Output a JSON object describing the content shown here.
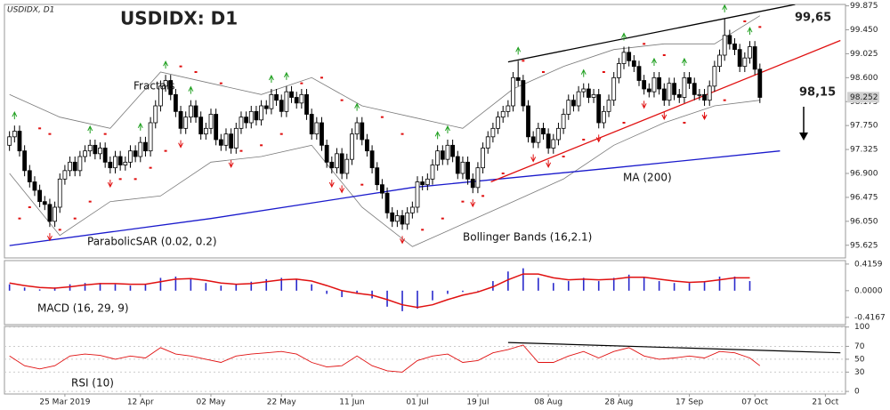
{
  "chart_data": [
    {
      "type": "candlestick",
      "title": "USDIDX: D1",
      "subtitle": "USDIDX, D1",
      "xlim": [
        -1,
        166
      ],
      "ylim": [
        95.4,
        99.9
      ],
      "yticks": [
        {
          "value": 99.875,
          "label": "99.875"
        },
        {
          "value": 99.45,
          "label": "99.450"
        },
        {
          "value": 99.025,
          "label": "99.025"
        },
        {
          "value": 98.6,
          "label": "98.600"
        },
        {
          "value": 98.175,
          "label": "98.175"
        },
        {
          "value": 97.75,
          "label": "97.750"
        },
        97.325,
        {
          "value": 96.9,
          "label": "96.900"
        },
        96.475,
        {
          "value": 96.05,
          "label": "96.050"
        },
        95.625
      ],
      "xticks": [
        {
          "value": 11,
          "label": "25 Mar 2019"
        },
        {
          "value": 26,
          "label": "12 Apr"
        },
        {
          "value": 40,
          "label": "02 May"
        },
        {
          "value": 54,
          "label": "22 May"
        },
        {
          "value": 68,
          "label": "11 Jun"
        },
        {
          "value": 81,
          "label": "01 Jul"
        },
        {
          "value": 93,
          "label": "19 Jul"
        },
        {
          "value": 107,
          "label": "08 Aug"
        },
        {
          "value": 121,
          "label": "28 Aug"
        },
        {
          "value": 135,
          "label": "17 Sep"
        },
        {
          "value": 148,
          "label": "07 Oct"
        },
        {
          "value": 162,
          "label": "21 Oct"
        }
      ],
      "up_color": "#ffffff",
      "down_color": "#000000",
      "open": [
        97.4,
        97.55,
        97.65,
        97.3,
        96.95,
        96.75,
        96.6,
        96.4,
        96.35,
        96.05,
        96.3,
        96.8,
        96.95,
        97.1,
        96.95,
        97.2,
        97.3,
        97.4,
        97.25,
        97.35,
        97.1,
        97.0,
        97.2,
        97.05,
        97.1,
        97.3,
        97.2,
        97.45,
        97.3,
        97.8,
        98.1,
        98.45,
        98.55,
        98.3,
        98.0,
        97.7,
        97.9,
        98.1,
        97.9,
        97.6,
        97.7,
        97.95,
        97.5,
        97.4,
        97.6,
        97.35,
        97.7,
        97.9,
        97.8,
        98.0,
        97.85,
        98.1,
        98.05,
        98.3,
        98.2,
        98.0,
        98.35,
        98.25,
        98.15,
        98.3,
        97.95,
        97.6,
        97.8,
        97.4,
        97.1,
        97.0,
        97.25,
        96.9,
        97.15,
        97.6,
        97.8,
        97.5,
        97.3,
        97.0,
        96.7,
        96.55,
        96.2,
        96.05,
        96.15,
        96.0,
        96.2,
        96.3,
        96.75,
        96.7,
        96.8,
        97.05,
        97.3,
        97.15,
        97.4,
        97.2,
        96.9,
        97.1,
        96.8,
        96.65,
        97.0,
        97.35,
        97.55,
        97.7,
        97.9,
        98.0,
        98.1,
        98.6,
        98.55,
        98.1,
        97.55,
        97.45,
        97.7,
        97.6,
        97.35,
        97.5,
        97.7,
        97.95,
        98.2,
        98.1,
        98.35,
        98.4,
        98.25,
        98.3,
        97.8,
        98.0,
        98.2,
        98.6,
        98.85,
        99.05,
        98.9,
        98.8,
        98.55,
        98.4,
        98.35,
        98.6,
        98.4,
        98.2,
        98.5,
        98.3,
        98.25,
        98.6,
        98.5,
        98.3,
        98.3,
        98.2,
        98.45,
        98.8,
        99.0,
        99.35,
        99.2,
        99.1,
        98.8,
        98.95,
        99.15,
        98.75
      ],
      "high": [
        97.65,
        97.75,
        97.75,
        97.4,
        97.05,
        96.85,
        96.7,
        96.5,
        96.45,
        96.4,
        96.9,
        97.05,
        97.2,
        97.2,
        97.3,
        97.4,
        97.5,
        97.5,
        97.45,
        97.45,
        97.2,
        97.3,
        97.3,
        97.2,
        97.4,
        97.4,
        97.55,
        97.55,
        97.9,
        98.2,
        98.55,
        98.65,
        98.65,
        98.4,
        98.1,
        98.0,
        98.2,
        98.2,
        98.0,
        97.8,
        98.05,
        98.05,
        97.6,
        97.7,
        97.7,
        97.8,
        98.0,
        98.0,
        98.1,
        98.1,
        98.2,
        98.2,
        98.4,
        98.4,
        98.3,
        98.45,
        98.45,
        98.35,
        98.4,
        98.4,
        98.05,
        97.9,
        97.9,
        97.5,
        97.2,
        97.35,
        97.35,
        97.25,
        97.7,
        97.9,
        97.9,
        97.6,
        97.4,
        97.1,
        96.8,
        96.65,
        96.3,
        96.25,
        96.25,
        96.3,
        96.4,
        96.85,
        96.85,
        96.9,
        97.15,
        97.4,
        97.4,
        97.5,
        97.5,
        97.3,
        97.2,
        97.2,
        96.9,
        97.1,
        97.45,
        97.65,
        97.8,
        98.0,
        98.1,
        98.2,
        98.7,
        98.9,
        98.65,
        98.2,
        97.65,
        97.8,
        97.8,
        97.7,
        97.6,
        97.8,
        98.05,
        98.3,
        98.3,
        98.45,
        98.5,
        98.5,
        98.4,
        98.4,
        98.1,
        98.3,
        98.7,
        98.95,
        99.15,
        99.15,
        99.0,
        98.9,
        98.65,
        98.5,
        98.7,
        98.7,
        98.5,
        98.6,
        98.6,
        98.4,
        98.7,
        98.7,
        98.6,
        98.4,
        98.4,
        98.55,
        98.9,
        99.1,
        99.65,
        99.45,
        99.3,
        99.2,
        99.05,
        99.25,
        99.25,
        98.85
      ],
      "low": [
        97.3,
        97.45,
        97.2,
        96.85,
        96.65,
        96.5,
        96.3,
        96.25,
        95.95,
        95.95,
        96.2,
        96.7,
        96.85,
        96.85,
        96.85,
        97.1,
        97.2,
        97.15,
        97.15,
        97.0,
        96.9,
        96.9,
        96.95,
        96.95,
        97.0,
        97.1,
        97.1,
        97.2,
        97.2,
        97.7,
        98.0,
        98.35,
        98.2,
        97.9,
        97.6,
        97.6,
        97.8,
        97.8,
        97.5,
        97.5,
        97.6,
        97.4,
        97.3,
        97.3,
        97.25,
        97.25,
        97.6,
        97.7,
        97.7,
        97.75,
        97.75,
        97.95,
        97.95,
        98.1,
        97.9,
        97.9,
        98.15,
        98.05,
        98.05,
        97.85,
        97.5,
        97.5,
        97.3,
        97.0,
        96.9,
        96.9,
        96.8,
        96.8,
        97.05,
        97.5,
        97.4,
        97.2,
        96.9,
        96.6,
        96.45,
        96.1,
        95.95,
        95.95,
        95.9,
        95.9,
        96.1,
        96.2,
        96.6,
        96.6,
        96.7,
        96.95,
        97.05,
        97.05,
        97.1,
        96.8,
        96.8,
        96.7,
        96.55,
        96.55,
        96.9,
        97.25,
        97.45,
        97.6,
        97.8,
        97.9,
        98.0,
        98.45,
        98.0,
        97.45,
        97.35,
        97.35,
        97.5,
        97.25,
        97.25,
        97.4,
        97.6,
        97.85,
        98.0,
        98.0,
        98.25,
        98.15,
        98.15,
        97.7,
        97.7,
        97.9,
        98.1,
        98.5,
        98.75,
        98.8,
        98.7,
        98.45,
        98.3,
        98.25,
        98.25,
        98.3,
        98.1,
        98.1,
        98.2,
        98.15,
        98.15,
        98.4,
        98.2,
        98.2,
        98.1,
        98.1,
        98.35,
        98.7,
        98.9,
        99.1,
        99.0,
        98.7,
        98.7,
        98.85,
        98.65,
        98.15
      ],
      "close": [
        97.55,
        97.65,
        97.3,
        96.95,
        96.75,
        96.6,
        96.4,
        96.35,
        96.05,
        96.3,
        96.8,
        96.95,
        97.1,
        96.95,
        97.2,
        97.3,
        97.4,
        97.25,
        97.35,
        97.1,
        97.0,
        97.2,
        97.05,
        97.1,
        97.3,
        97.2,
        97.45,
        97.3,
        97.8,
        98.1,
        98.45,
        98.55,
        98.3,
        98.0,
        97.7,
        97.9,
        98.1,
        97.9,
        97.6,
        97.7,
        97.95,
        97.5,
        97.4,
        97.6,
        97.35,
        97.7,
        97.9,
        97.8,
        98.0,
        97.85,
        98.1,
        98.05,
        98.3,
        98.2,
        98.0,
        98.35,
        98.25,
        98.15,
        98.3,
        97.95,
        97.6,
        97.8,
        97.4,
        97.1,
        97.0,
        97.25,
        96.9,
        97.15,
        97.6,
        97.8,
        97.5,
        97.3,
        97.0,
        96.7,
        96.55,
        96.2,
        96.05,
        96.15,
        96.0,
        96.2,
        96.3,
        96.75,
        96.7,
        96.8,
        97.05,
        97.3,
        97.15,
        97.4,
        97.2,
        96.9,
        97.1,
        96.8,
        96.65,
        97.0,
        97.35,
        97.55,
        97.7,
        97.9,
        98.0,
        98.1,
        98.6,
        98.55,
        98.1,
        97.55,
        97.45,
        97.7,
        97.6,
        97.35,
        97.5,
        97.7,
        97.95,
        98.2,
        98.1,
        98.35,
        98.4,
        98.25,
        98.3,
        97.8,
        98.0,
        98.2,
        98.6,
        98.85,
        99.05,
        98.9,
        98.8,
        98.55,
        98.4,
        98.35,
        98.6,
        98.4,
        98.2,
        98.5,
        98.3,
        98.25,
        98.6,
        98.5,
        98.3,
        98.3,
        98.2,
        98.45,
        98.8,
        99.0,
        99.35,
        99.2,
        99.1,
        98.8,
        98.95,
        99.15,
        98.75,
        98.25
      ],
      "price_tag": 98.252,
      "ma": {
        "label": "MA (200)",
        "color": "#1a1acc",
        "x": [
          0,
          40,
          80,
          120,
          153
        ],
        "values": [
          95.62,
          96.1,
          96.65,
          97.0,
          97.3
        ]
      },
      "bollinger": {
        "label": "Bollinger Bands (16,2.1)",
        "color": "#7a7a7a",
        "x": [
          0,
          10,
          20,
          30,
          40,
          50,
          60,
          70,
          80,
          90,
          100,
          110,
          120,
          130,
          140,
          149
        ],
        "upper": [
          98.3,
          97.9,
          97.7,
          98.7,
          98.5,
          98.3,
          98.6,
          98.1,
          97.9,
          97.7,
          98.4,
          98.8,
          99.1,
          99.2,
          99.2,
          99.7
        ],
        "lower": [
          96.9,
          95.8,
          96.4,
          96.5,
          97.1,
          97.2,
          97.4,
          96.3,
          95.6,
          96.0,
          96.4,
          96.8,
          97.4,
          97.8,
          98.1,
          98.2
        ]
      },
      "sar": {
        "label": "ParabolicSAR (0.02, 0.2)",
        "color": "#e01010",
        "x": [
          2,
          4,
          6,
          8,
          10,
          13,
          16,
          19,
          22,
          25,
          28,
          31,
          34,
          37,
          42,
          46,
          50,
          54,
          58,
          62,
          66,
          70,
          74,
          78,
          82,
          86,
          90,
          94,
          98,
          102,
          106,
          110,
          114,
          118,
          122,
          126,
          130,
          134,
          138,
          142,
          146,
          149
        ],
        "values": [
          96.1,
          96.3,
          97.7,
          97.6,
          95.9,
          96.1,
          96.4,
          97.6,
          96.8,
          96.8,
          97.0,
          97.3,
          98.8,
          98.7,
          98.5,
          97.3,
          97.4,
          97.6,
          98.5,
          98.6,
          98.2,
          96.7,
          97.9,
          97.6,
          95.9,
          96.1,
          96.4,
          96.5,
          96.9,
          98.9,
          98.7,
          97.2,
          97.5,
          98.7,
          97.8,
          99.2,
          99.0,
          97.8,
          97.9,
          98.2,
          99.6,
          99.5
        ]
      },
      "fractals": {
        "label": "Fractals",
        "up_color": "#20a020",
        "down_color": "#e01010",
        "up_x": [
          1,
          16,
          26,
          31,
          36,
          52,
          55,
          69,
          85,
          87,
          101,
          114,
          122,
          128,
          134,
          142,
          147
        ],
        "up": [
          97.75,
          97.5,
          97.55,
          98.65,
          98.2,
          98.4,
          98.45,
          97.9,
          97.4,
          97.5,
          98.9,
          98.5,
          99.15,
          98.7,
          98.7,
          99.65,
          99.25
        ],
        "down_x": [
          8,
          20,
          34,
          44,
          64,
          66,
          78,
          92,
          104,
          107,
          117,
          126,
          130,
          138
        ],
        "down": [
          95.95,
          96.9,
          97.6,
          97.25,
          96.9,
          96.8,
          95.9,
          96.55,
          97.35,
          97.25,
          97.7,
          98.3,
          98.1,
          98.1
        ]
      },
      "trendlines": [
        {
          "color": "#000000",
          "x": [
            99,
            156
          ],
          "values": [
            98.88,
            99.9
          ]
        },
        {
          "color": "#e01010",
          "x": [
            95.6,
            165
          ],
          "values": [
            96.75,
            99.26
          ]
        }
      ],
      "annotations": [
        {
          "text": "99,65"
        },
        {
          "text": "98,15"
        }
      ]
    },
    {
      "type": "macd",
      "label": "MACD (16, 29, 9)",
      "ylim": [
        -0.53,
        0.47
      ],
      "yticks": [
        0.4159,
        {
          "value": 0,
          "label": "0.0000"
        },
        -0.4167
      ],
      "hist_color": "#2a2acc",
      "signal_color": "#e01010",
      "x": [
        0,
        3,
        6,
        9,
        12,
        15,
        18,
        21,
        24,
        27,
        30,
        33,
        36,
        39,
        42,
        45,
        48,
        51,
        54,
        57,
        60,
        63,
        66,
        69,
        72,
        75,
        78,
        81,
        84,
        87,
        90,
        93,
        96,
        99,
        102,
        105,
        108,
        111,
        114,
        117,
        120,
        123,
        126,
        129,
        132,
        135,
        138,
        141,
        144,
        147
      ],
      "histogram": [
        0.1,
        0.05,
        0.02,
        0.05,
        0.1,
        0.12,
        0.12,
        0.1,
        0.08,
        0.1,
        0.2,
        0.22,
        0.18,
        0.12,
        0.08,
        0.1,
        0.14,
        0.18,
        0.2,
        0.18,
        0.1,
        -0.05,
        -0.1,
        -0.05,
        -0.12,
        -0.25,
        -0.32,
        -0.28,
        -0.15,
        -0.05,
        -0.02,
        0.0,
        0.15,
        0.3,
        0.35,
        0.2,
        0.12,
        0.15,
        0.2,
        0.15,
        0.2,
        0.25,
        0.2,
        0.15,
        0.12,
        0.12,
        0.15,
        0.22,
        0.22,
        0.15
      ],
      "signal": [
        0.12,
        0.08,
        0.05,
        0.04,
        0.06,
        0.09,
        0.11,
        0.11,
        0.1,
        0.1,
        0.14,
        0.18,
        0.19,
        0.16,
        0.12,
        0.1,
        0.11,
        0.14,
        0.17,
        0.18,
        0.15,
        0.08,
        0.0,
        -0.04,
        -0.07,
        -0.14,
        -0.22,
        -0.26,
        -0.22,
        -0.14,
        -0.07,
        -0.02,
        0.06,
        0.17,
        0.26,
        0.26,
        0.2,
        0.17,
        0.18,
        0.17,
        0.18,
        0.21,
        0.21,
        0.18,
        0.15,
        0.13,
        0.14,
        0.17,
        0.2,
        0.2
      ]
    },
    {
      "type": "line",
      "label": "RSI (10)",
      "ylim": [
        -4,
        101
      ],
      "yticks": [
        100,
        70,
        50,
        30,
        0
      ],
      "color": "#e01010",
      "x": [
        0,
        3,
        6,
        9,
        12,
        15,
        18,
        21,
        24,
        27,
        30,
        33,
        36,
        39,
        42,
        45,
        48,
        51,
        54,
        57,
        60,
        63,
        66,
        69,
        72,
        75,
        78,
        81,
        84,
        87,
        90,
        93,
        96,
        99,
        102,
        105,
        108,
        111,
        114,
        117,
        120,
        123,
        126,
        129,
        132,
        135,
        138,
        141,
        144,
        147,
        149
      ],
      "values": [
        55,
        40,
        35,
        40,
        55,
        58,
        56,
        50,
        55,
        52,
        68,
        58,
        55,
        50,
        45,
        55,
        58,
        60,
        62,
        58,
        45,
        38,
        40,
        55,
        40,
        32,
        30,
        48,
        55,
        58,
        45,
        48,
        60,
        65,
        72,
        45,
        45,
        55,
        62,
        52,
        62,
        68,
        55,
        50,
        52,
        55,
        52,
        62,
        60,
        52,
        40
      ],
      "trendline": {
        "color": "#000000",
        "x": [
          99,
          165
        ],
        "values": [
          76,
          60
        ]
      }
    }
  ]
}
